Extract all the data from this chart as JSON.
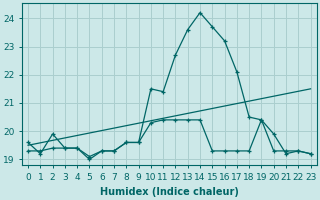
{
  "xlabel": "Humidex (Indice chaleur)",
  "background_color": "#cce8e8",
  "grid_color": "#aacece",
  "line_color": "#006666",
  "xlim": [
    -0.5,
    23.5
  ],
  "ylim": [
    18.8,
    24.55
  ],
  "yticks": [
    19,
    20,
    21,
    22,
    23,
    24
  ],
  "xticks": [
    0,
    1,
    2,
    3,
    4,
    5,
    6,
    7,
    8,
    9,
    10,
    11,
    12,
    13,
    14,
    15,
    16,
    17,
    18,
    19,
    20,
    21,
    22,
    23
  ],
  "series1_x": [
    0,
    1,
    2,
    3,
    4,
    5,
    6,
    7,
    8,
    9,
    10,
    11,
    12,
    13,
    14,
    15,
    16,
    17,
    18,
    19,
    20,
    21,
    22,
    23
  ],
  "series1_y": [
    19.6,
    19.2,
    19.9,
    19.4,
    19.4,
    19.0,
    19.3,
    19.3,
    19.6,
    19.6,
    21.5,
    21.4,
    22.7,
    23.6,
    24.2,
    23.7,
    23.2,
    22.1,
    20.5,
    20.4,
    19.9,
    19.2,
    19.3,
    19.2
  ],
  "series2_x": [
    0,
    1,
    2,
    3,
    4,
    5,
    6,
    7,
    8,
    9,
    10,
    11,
    12,
    13,
    14,
    15,
    16,
    17,
    18,
    19,
    20,
    21,
    22,
    23
  ],
  "series2_y": [
    19.3,
    19.3,
    19.4,
    19.4,
    19.4,
    19.1,
    19.3,
    19.3,
    19.6,
    19.6,
    20.3,
    20.4,
    20.4,
    20.4,
    20.4,
    19.3,
    19.3,
    19.3,
    19.3,
    20.4,
    19.3,
    19.3,
    19.3,
    19.2
  ],
  "series3_x": [
    0,
    23
  ],
  "series3_y": [
    19.5,
    21.5
  ],
  "xlabel_fontsize": 7,
  "tick_fontsize": 6.5
}
